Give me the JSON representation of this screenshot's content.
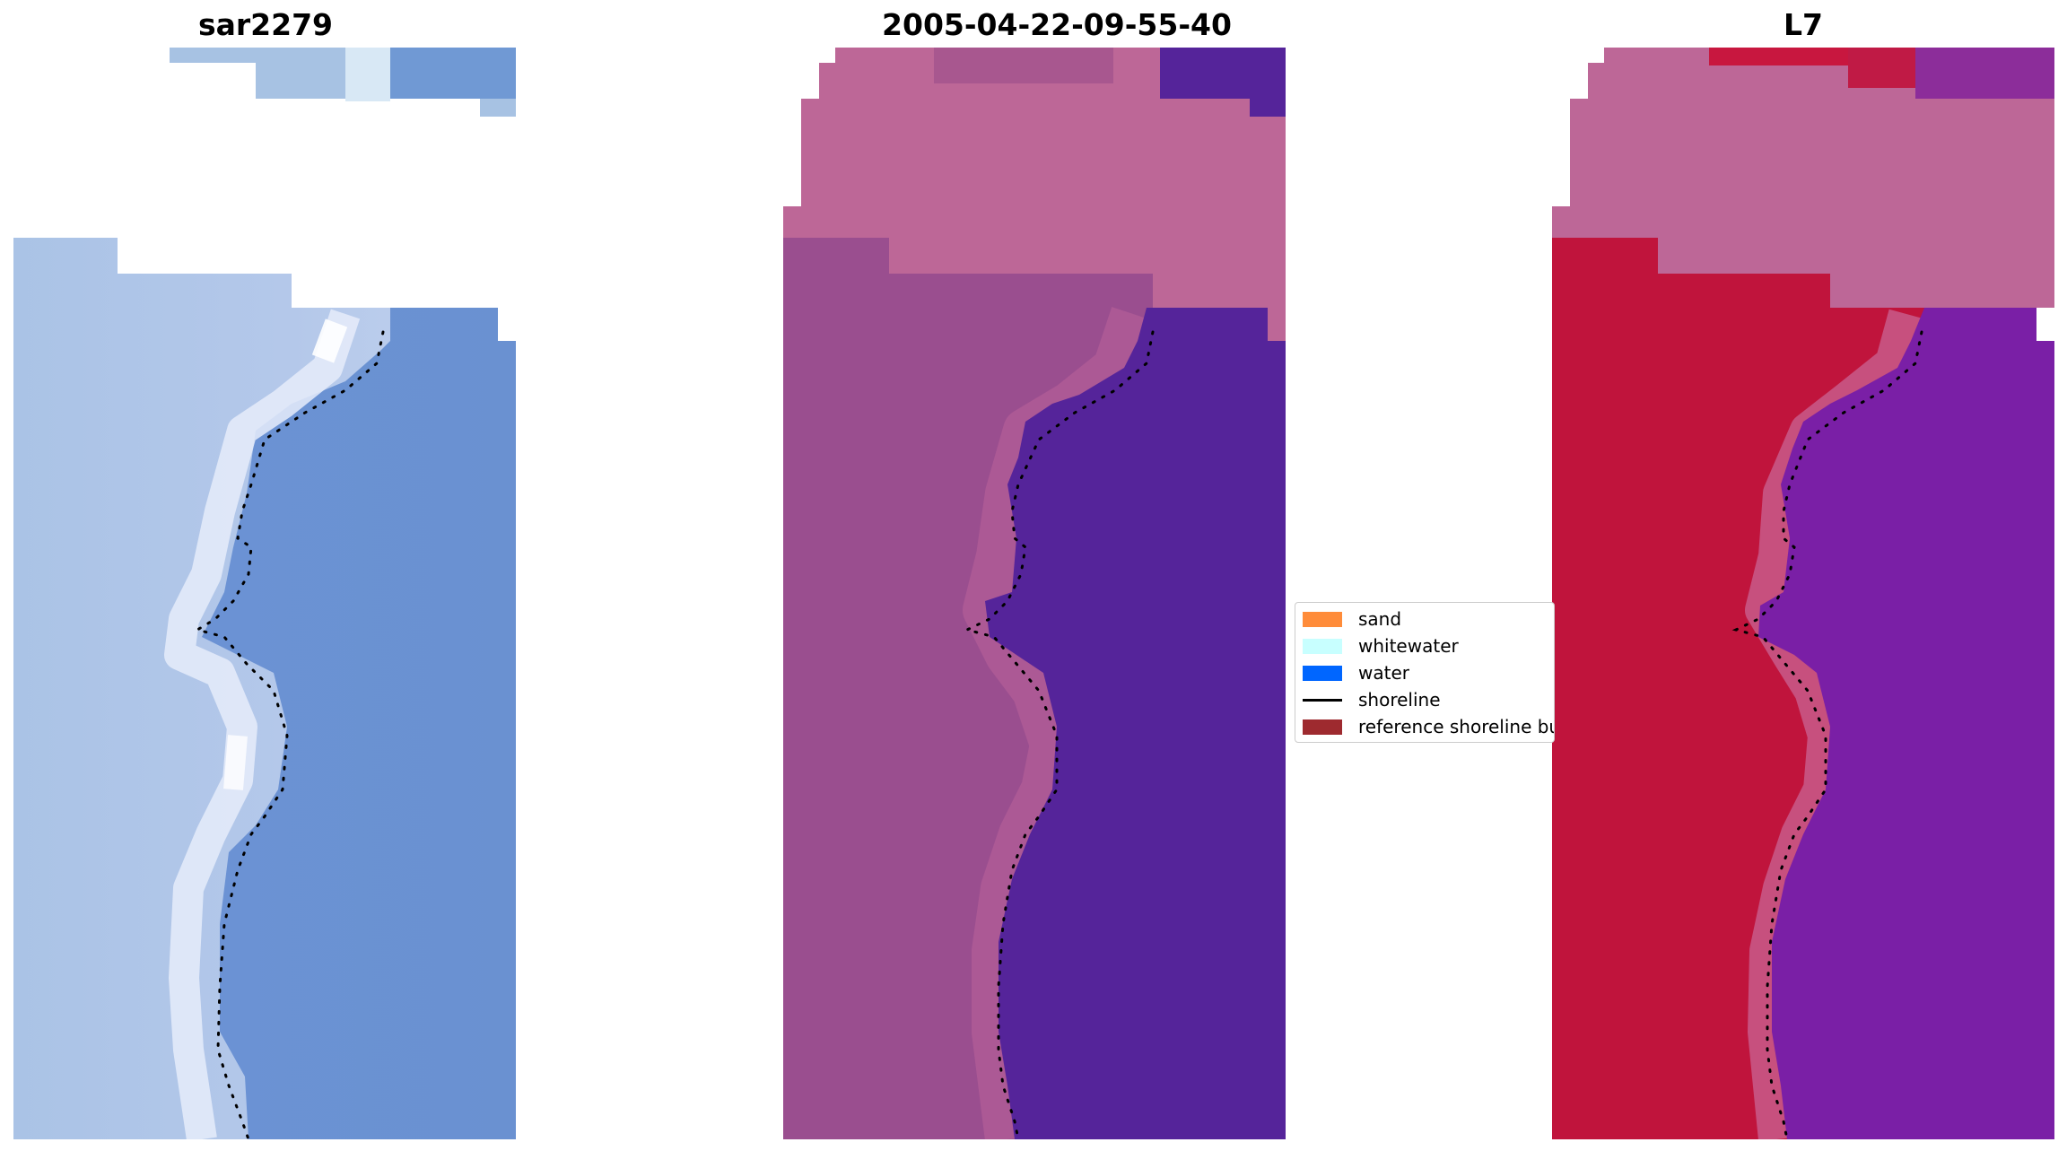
{
  "panels": [
    {
      "title": "sar2279",
      "style": "rgb"
    },
    {
      "title": "2005-04-22-09-55-40",
      "style": "classified"
    },
    {
      "title": "L7",
      "style": "falsecolor"
    }
  ],
  "legend": {
    "entries": [
      {
        "label": "sand",
        "kind": "patch",
        "color": "#ff8c3a"
      },
      {
        "label": "whitewater",
        "kind": "patch",
        "color": "#c8ffff"
      },
      {
        "label": "water",
        "kind": "patch",
        "color": "#0066ff"
      },
      {
        "label": "shoreline",
        "kind": "line",
        "color": "#000000"
      },
      {
        "label": "reference shoreline buffer",
        "kind": "patch",
        "color": "#9e2a2f"
      }
    ]
  },
  "colors": {
    "rgb_land": "#a9bfe3",
    "rgb_water": "#6890d0",
    "rgb_surf": "#eef2fb",
    "classified_land": "#9a4e8f",
    "classified_cloud": "#bd6797",
    "classified_water": "#55249a",
    "l7_land": "#c0143c",
    "l7_water": "#7a1fa6",
    "l7_cloud": "#bd6797",
    "shoreline": "#000000"
  }
}
